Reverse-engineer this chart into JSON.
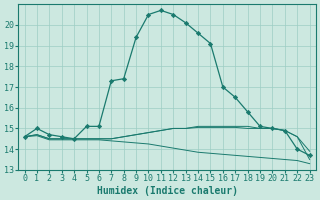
{
  "title": "",
  "xlabel": "Humidex (Indice chaleur)",
  "ylabel": "",
  "xlim": [
    -0.5,
    23.5
  ],
  "ylim": [
    13,
    21
  ],
  "yticks": [
    13,
    14,
    15,
    16,
    17,
    18,
    19,
    20
  ],
  "xticks": [
    0,
    1,
    2,
    3,
    4,
    5,
    6,
    7,
    8,
    9,
    10,
    11,
    12,
    13,
    14,
    15,
    16,
    17,
    18,
    19,
    20,
    21,
    22,
    23
  ],
  "bg_color": "#cce8e0",
  "grid_color": "#9ecdc4",
  "line_color": "#1a7a6e",
  "series_main": [
    14.6,
    15.0,
    14.7,
    14.6,
    14.5,
    15.1,
    15.1,
    17.3,
    17.4,
    19.4,
    20.5,
    20.7,
    20.5,
    20.1,
    19.6,
    19.1,
    17.0,
    16.5,
    15.8,
    15.1,
    15.0,
    14.9,
    14.0,
    13.7
  ],
  "series_line2": [
    14.6,
    14.7,
    14.5,
    14.5,
    14.5,
    14.5,
    14.5,
    14.5,
    14.6,
    14.7,
    14.8,
    14.9,
    15.0,
    15.0,
    15.05,
    15.05,
    15.05,
    15.05,
    15.0,
    15.0,
    15.0,
    14.9,
    14.6,
    13.5
  ],
  "series_line3": [
    14.6,
    14.65,
    14.45,
    14.45,
    14.45,
    14.45,
    14.45,
    14.4,
    14.35,
    14.3,
    14.25,
    14.15,
    14.05,
    13.95,
    13.85,
    13.8,
    13.75,
    13.7,
    13.65,
    13.6,
    13.55,
    13.5,
    13.45,
    13.3
  ],
  "series_line4": [
    14.6,
    14.7,
    14.5,
    14.5,
    14.5,
    14.5,
    14.5,
    14.5,
    14.6,
    14.7,
    14.8,
    14.9,
    15.0,
    15.0,
    15.1,
    15.1,
    15.1,
    15.1,
    15.1,
    15.0,
    15.0,
    14.9,
    14.6,
    13.9
  ],
  "figsize": [
    3.2,
    2.0
  ],
  "dpi": 100
}
